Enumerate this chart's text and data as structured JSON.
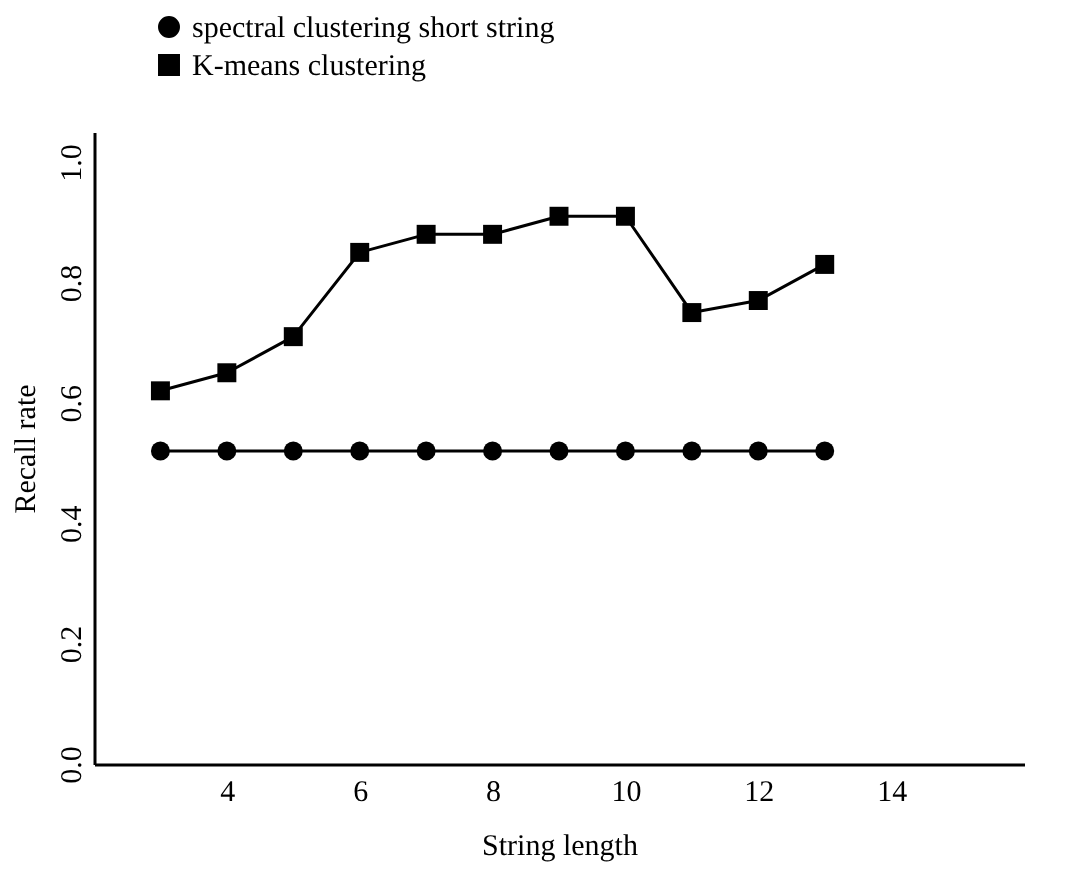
{
  "chart_data": {
    "type": "line",
    "xlabel": "String length",
    "ylabel": "Recall rate",
    "x": [
      3,
      4,
      5,
      6,
      7,
      8,
      9,
      10,
      11,
      12,
      13
    ],
    "series": [
      {
        "name": "spectral clustering short  string",
        "color": "#000000",
        "marker": "circle",
        "values": [
          0.52,
          0.52,
          0.52,
          0.52,
          0.52,
          0.52,
          0.52,
          0.52,
          0.52,
          0.52,
          0.52
        ]
      },
      {
        "name": "K-means clustering",
        "color": "#000000",
        "marker": "square",
        "values": [
          0.62,
          0.65,
          0.71,
          0.85,
          0.88,
          0.88,
          0.91,
          0.91,
          0.75,
          0.77,
          0.83
        ]
      }
    ],
    "xlim": [
      2,
      16
    ],
    "xticks": [
      4,
      6,
      8,
      10,
      12,
      14
    ],
    "ylim": [
      0,
      1.05
    ],
    "yticks": [
      {
        "value": 0,
        "label": "0.0"
      },
      {
        "value": 0.2,
        "label": "0.2"
      },
      {
        "value": 0.4,
        "label": "0.4"
      },
      {
        "value": 0.6,
        "label": "0.6"
      },
      {
        "value": 0.8,
        "label": "0.8"
      },
      {
        "value": 1,
        "label": "1.0"
      }
    ],
    "grid": false,
    "legend": "top left",
    "line_style": "solid"
  }
}
